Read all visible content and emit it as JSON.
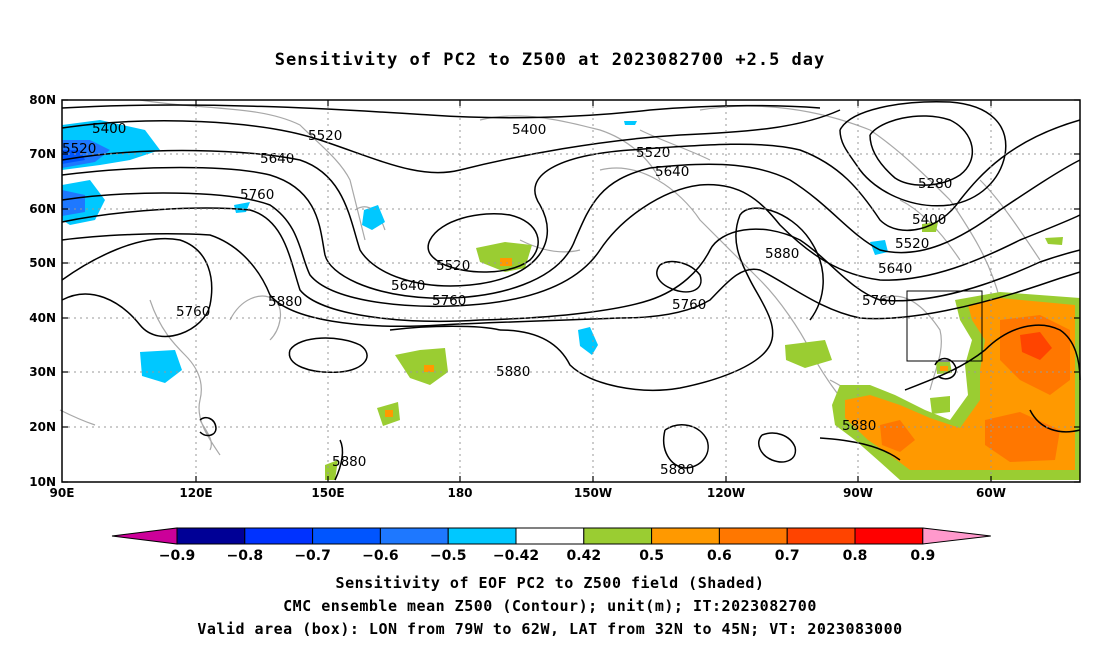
{
  "title": "Sensitivity of PC2 to Z500 at 2023082700 +2.5 day",
  "map": {
    "lat_ticks": [
      "10N",
      "20N",
      "30N",
      "40N",
      "50N",
      "60N",
      "70N",
      "80N"
    ],
    "lon_ticks": [
      "90E",
      "120E",
      "150E",
      "180",
      "150W",
      "120W",
      "90W",
      "60W"
    ],
    "valid_box": {
      "lon_from": "79W",
      "lon_to": "62W",
      "lat_from": "32N",
      "lat_to": "45N"
    }
  },
  "contour_labels": [
    {
      "text": "5400"
    },
    {
      "text": "5520"
    },
    {
      "text": "5520"
    },
    {
      "text": "5640"
    },
    {
      "text": "5760"
    },
    {
      "text": "5400"
    },
    {
      "text": "5520"
    },
    {
      "text": "5640"
    },
    {
      "text": "5280"
    },
    {
      "text": "5400"
    },
    {
      "text": "5520"
    },
    {
      "text": "5640"
    },
    {
      "text": "5760"
    },
    {
      "text": "5880"
    },
    {
      "text": "5760"
    },
    {
      "text": "5880"
    },
    {
      "text": "5520"
    },
    {
      "text": "5640"
    },
    {
      "text": "5760"
    },
    {
      "text": "5880"
    },
    {
      "text": "5880"
    },
    {
      "text": "5880"
    },
    {
      "text": "5880"
    }
  ],
  "colorbar": {
    "labels": [
      "−0.9",
      "−0.8",
      "−0.7",
      "−0.6",
      "−0.5",
      "−0.42",
      "0.42",
      "0.5",
      "0.6",
      "0.7",
      "0.8",
      "0.9"
    ],
    "colors": [
      "#000096",
      "#0032ff",
      "#0055ff",
      "#1e78ff",
      "#00c8ff",
      "#ffffff",
      "#9acd32",
      "#ff9900",
      "#ff7700",
      "#ff4400",
      "#ff0000"
    ],
    "low_color": "#cc0099",
    "high_color": "#ff99cc"
  },
  "captions": [
    "Sensitivity of EOF PC2 to Z500 field (Shaded)",
    "CMC ensemble mean Z500 (Contour); unit(m); IT:2023082700",
    "Valid area (box): LON from 79W to 62W, LAT from 32N to 45N; VT: 2023083000"
  ]
}
